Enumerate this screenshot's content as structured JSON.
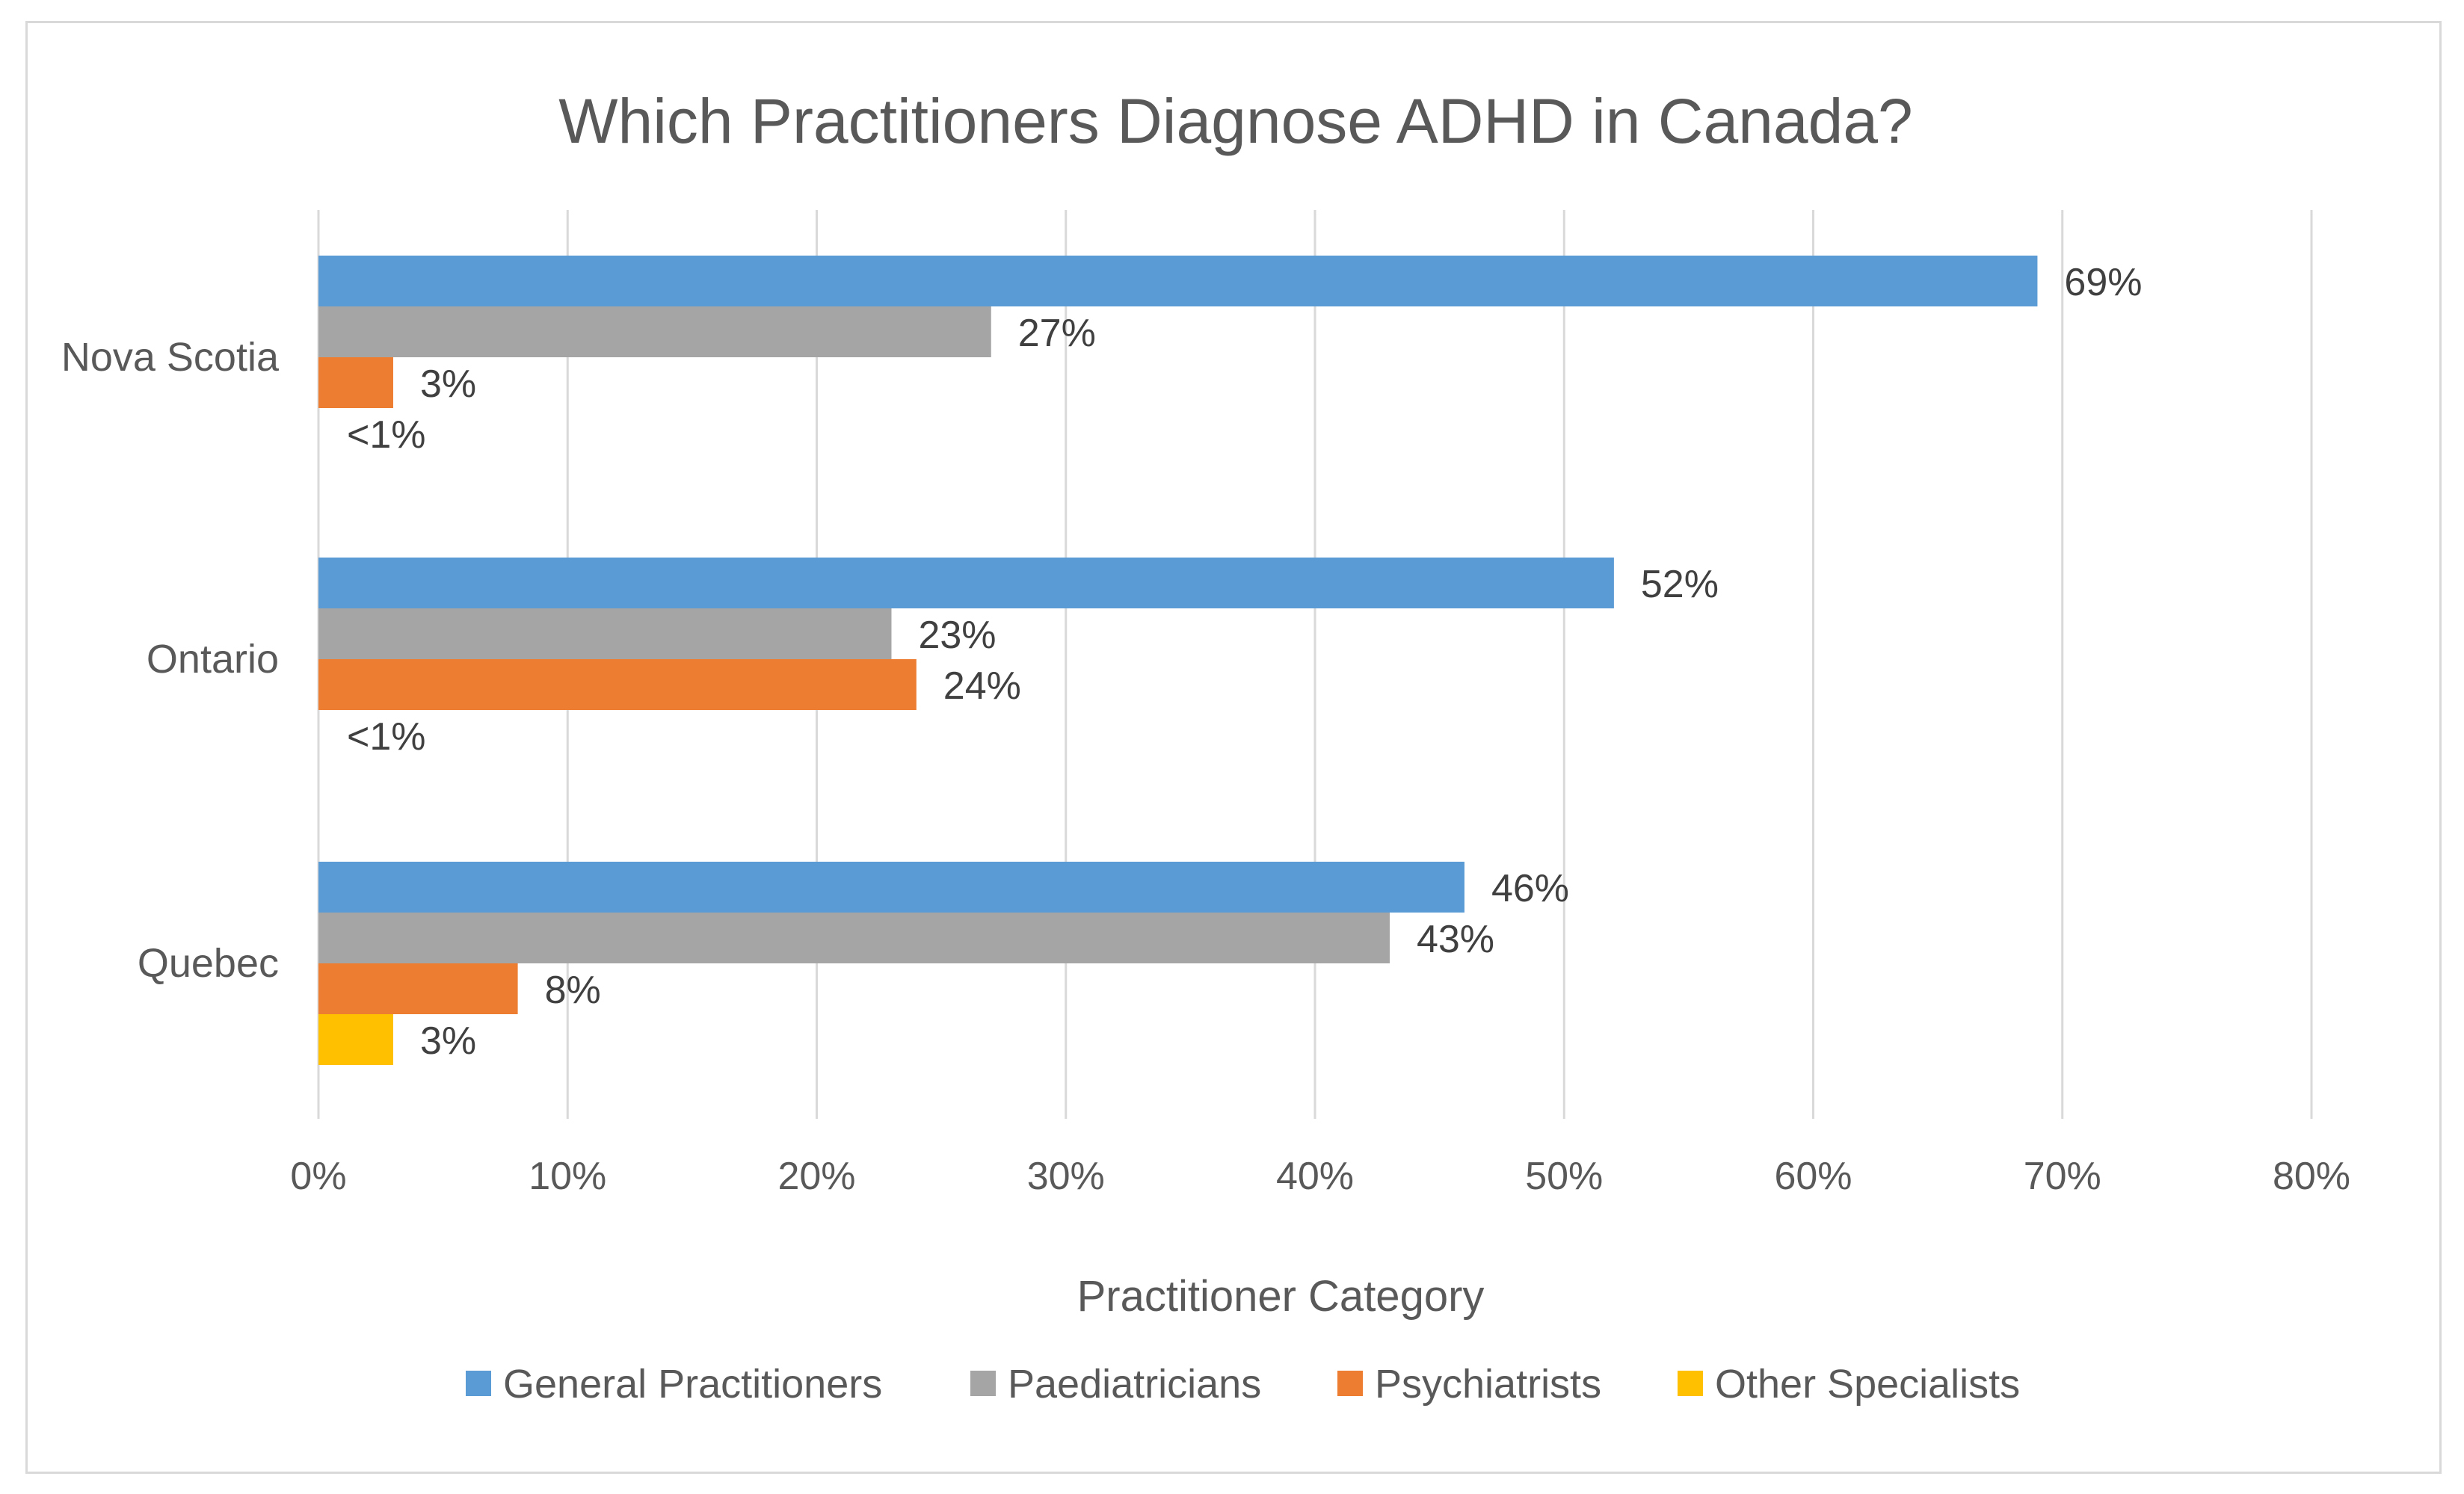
{
  "chart_data": {
    "type": "bar",
    "orientation": "horizontal",
    "title": "Which Practitioners Diagnose ADHD in Canada?",
    "xlabel": "Practitioner Category",
    "ylabel": "",
    "xlim": [
      0,
      80
    ],
    "grid": true,
    "legend_position": "bottom",
    "x_tick_labels": [
      "0%",
      "10%",
      "20%",
      "30%",
      "40%",
      "50%",
      "60%",
      "70%",
      "80%"
    ],
    "categories": [
      "Nova Scotia",
      "Ontario",
      "Quebec"
    ],
    "series": [
      {
        "name": "General Practitioners",
        "color": "#5b9bd5",
        "values": [
          69,
          52,
          46
        ],
        "labels": [
          "69%",
          "52%",
          "46%"
        ]
      },
      {
        "name": "Paediatricians",
        "color": "#a5a5a5",
        "values": [
          27,
          23,
          43
        ],
        "labels": [
          "27%",
          "23%",
          "43%"
        ]
      },
      {
        "name": "Psychiatrists",
        "color": "#ed7d31",
        "values": [
          3,
          24,
          8
        ],
        "labels": [
          "3%",
          "24%",
          "8%"
        ]
      },
      {
        "name": "Other Specialists",
        "color": "#ffc000",
        "values": [
          0.5,
          0.5,
          3
        ],
        "labels": [
          "<1%",
          "<1%",
          "3%"
        ]
      }
    ]
  }
}
